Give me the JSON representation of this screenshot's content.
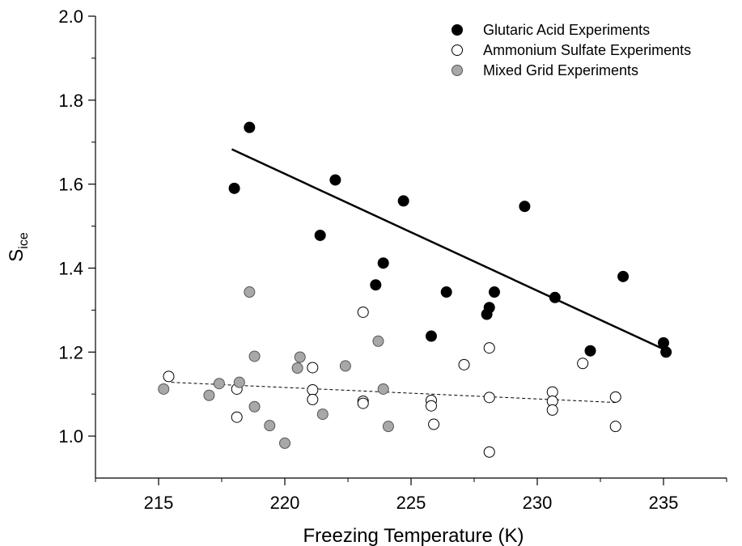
{
  "chart_data": {
    "type": "scatter",
    "xlabel": "Freezing Temperature (K)",
    "ylabel": {
      "main": "S",
      "sub": "ice"
    },
    "xlim": [
      212.5,
      237.5
    ],
    "ylim": [
      0.9,
      2.0
    ],
    "xticks": [
      215,
      220,
      225,
      230,
      235
    ],
    "yticks": [
      1.0,
      1.2,
      1.4,
      1.6,
      1.8,
      2.0
    ],
    "ytick_labels": [
      "1.0",
      "1.2",
      "1.4",
      "1.6",
      "1.8",
      "2.0"
    ],
    "grid": false,
    "legend_position": "top-right",
    "series": [
      {
        "name": "Glutaric Acid Experiments",
        "marker": "filled-black",
        "fill": "#000000",
        "stroke": "#000000",
        "points": [
          [
            218.0,
            1.59
          ],
          [
            218.6,
            1.735
          ],
          [
            221.4,
            1.478
          ],
          [
            222.0,
            1.61
          ],
          [
            223.6,
            1.36
          ],
          [
            223.9,
            1.412
          ],
          [
            224.7,
            1.56
          ],
          [
            225.8,
            1.238
          ],
          [
            226.4,
            1.343
          ],
          [
            228.0,
            1.29
          ],
          [
            228.1,
            1.306
          ],
          [
            228.3,
            1.343
          ],
          [
            229.5,
            1.547
          ],
          [
            230.7,
            1.33
          ],
          [
            232.1,
            1.203
          ],
          [
            233.4,
            1.38
          ],
          [
            235.0,
            1.222
          ],
          [
            235.1,
            1.2
          ]
        ]
      },
      {
        "name": "Ammonium Sulfate Experiments",
        "marker": "open-circle",
        "fill": "#ffffff",
        "stroke": "#000000",
        "points": [
          [
            215.4,
            1.142
          ],
          [
            218.1,
            1.112
          ],
          [
            218.1,
            1.045
          ],
          [
            221.1,
            1.163
          ],
          [
            221.1,
            1.11
          ],
          [
            221.1,
            1.087
          ],
          [
            223.1,
            1.295
          ],
          [
            223.1,
            1.083
          ],
          [
            223.1,
            1.078
          ],
          [
            225.8,
            1.085
          ],
          [
            225.8,
            1.072
          ],
          [
            225.9,
            1.028
          ],
          [
            227.1,
            1.17
          ],
          [
            228.1,
            1.21
          ],
          [
            228.1,
            1.092
          ],
          [
            228.1,
            0.962
          ],
          [
            230.6,
            1.105
          ],
          [
            230.6,
            1.083
          ],
          [
            230.6,
            1.062
          ],
          [
            231.8,
            1.173
          ],
          [
            233.1,
            1.093
          ],
          [
            233.1,
            1.023
          ]
        ]
      },
      {
        "name": "Mixed Grid Experiments",
        "marker": "filled-gray",
        "fill": "#a8a8a8",
        "stroke": "#555555",
        "points": [
          [
            215.2,
            1.112
          ],
          [
            217.0,
            1.097
          ],
          [
            217.4,
            1.125
          ],
          [
            218.2,
            1.128
          ],
          [
            218.6,
            1.343
          ],
          [
            218.8,
            1.19
          ],
          [
            218.8,
            1.07
          ],
          [
            219.4,
            1.025
          ],
          [
            220.0,
            0.983
          ],
          [
            220.5,
            1.162
          ],
          [
            220.6,
            1.188
          ],
          [
            221.5,
            1.052
          ],
          [
            222.4,
            1.167
          ],
          [
            223.7,
            1.226
          ],
          [
            223.9,
            1.112
          ],
          [
            224.1,
            1.023
          ]
        ]
      }
    ],
    "fit_lines": [
      {
        "series": "Glutaric Acid Experiments",
        "style": "solid",
        "x": [
          217.9,
          235.0
        ],
        "y": [
          1.683,
          1.207
        ]
      },
      {
        "series": "Ammonium Sulfate Experiments",
        "style": "dashed",
        "x": [
          215.5,
          233.1
        ],
        "y": [
          1.128,
          1.08
        ]
      }
    ]
  }
}
